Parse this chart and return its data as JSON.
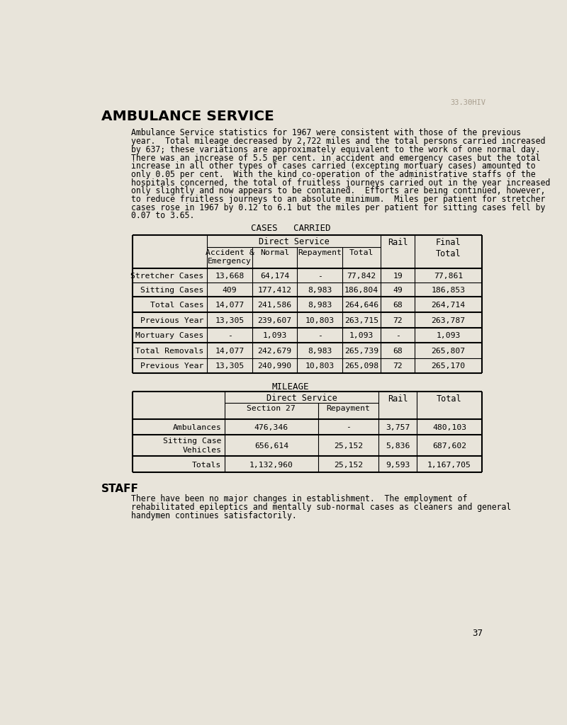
{
  "title": "AMBULANCE SERVICE",
  "page_number": "37",
  "bg_color": "#e8e4da",
  "watermark_color": "#c8c0b0",
  "intro_text": [
    "Ambulance Service statistics for 1967 were consistent with those of the previous",
    "year.  Total mileage decreased by 2,722 miles and the total persons carried increased",
    "by 637; these variations are approximately equivalent to the work of one normal day.",
    "There was an increase of 5.5 per cent. in accident and emergency cases but the total",
    "increase in all other types of cases carried (excepting mortuary cases) amounted to",
    "only 0.05 per cent.  With the kind co-operation of the administrative staffs of the",
    "hospitals concerned, the total of fruitless journeys carried out in the year increased",
    "only slightly and now appears to be contained.  Efforts are being continued, however,",
    "to reduce fruitless journeys to an absolute minimum.  Miles per patient for stretcher",
    "cases rose in 1967 by 0.12 to 6.1 but the miles per patient for sitting cases fell by",
    "0.07 to 3.65."
  ],
  "cases_carried_title": "CASES   CARRIED",
  "cases_rows": [
    [
      "Stretcher Cases",
      "13,668",
      "64,174",
      "-",
      "77,842",
      "19",
      "77,861"
    ],
    [
      "Sitting Cases",
      "409",
      "177,412",
      "8,983",
      "186,804",
      "49",
      "186,853"
    ],
    [
      "Total Cases",
      "14,077",
      "241,586",
      "8,983",
      "264,646",
      "68",
      "264,714"
    ],
    [
      "Previous Year",
      "13,305",
      "239,607",
      "10,803",
      "263,715",
      "72",
      "263,787"
    ],
    [
      "Mortuary Cases",
      "-",
      "1,093",
      "-",
      "1,093",
      "-",
      "1,093"
    ],
    [
      "Total Removals",
      "14,077",
      "242,679",
      "8,983",
      "265,739",
      "68",
      "265,807"
    ],
    [
      "Previous Year",
      "13,305",
      "240,990",
      "10,803",
      "265,098",
      "72",
      "265,170"
    ]
  ],
  "mileage_title": "MILEAGE",
  "mileage_rows": [
    [
      "Ambulances",
      "476,346",
      "-",
      "3,757",
      "480,103"
    ],
    [
      "Sitting Case\nVehicles",
      "656,614",
      "25,152",
      "5,836",
      "687,602"
    ],
    [
      "Totals",
      "1,132,960",
      "25,152",
      "9,593",
      "1,167,705"
    ]
  ],
  "staff_title": "STAFF",
  "staff_text": [
    "There have been no major changes in establishment.  The employment of",
    "rehabilitated epileptics and mentally sub-normal cases as cleaners and general",
    "handymen continues satisfactorily."
  ]
}
